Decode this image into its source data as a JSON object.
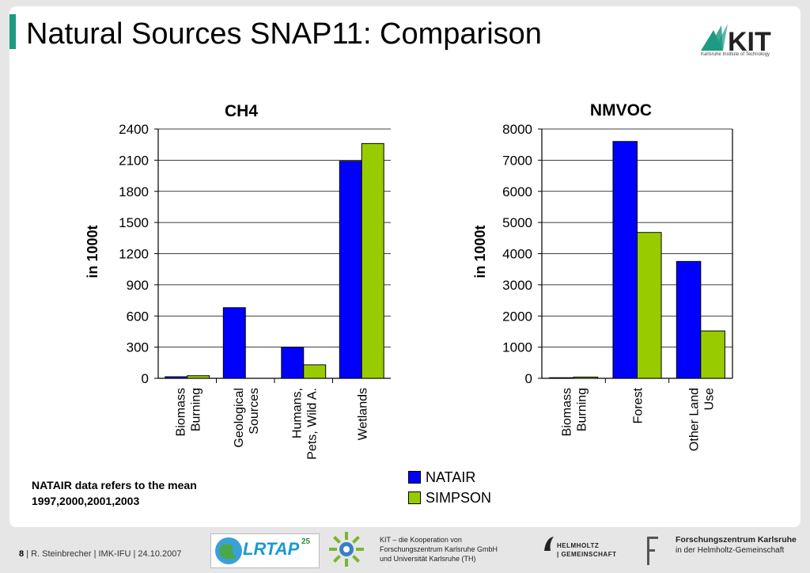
{
  "slide": {
    "title": "Natural Sources SNAP11: Comparison",
    "logo": {
      "name": "KIT",
      "subtitle": "Karlsruhe Institute of Technology"
    },
    "note": [
      "NATAIR data refers to the mean",
      "1997,2000,2001,2003"
    ],
    "legend": [
      {
        "label": "NATAIR",
        "color": "#0000ff"
      },
      {
        "label": "SIMPSON",
        "color": "#99cc00"
      }
    ]
  },
  "chart_data": [
    {
      "type": "bar",
      "title": "CH4",
      "ylabel": "in 1000t",
      "categories": [
        [
          "Biomass",
          "Burning"
        ],
        [
          "Geological",
          "Sources"
        ],
        [
          "Humans,",
          "Pets, Wild A."
        ],
        [
          "Wetlands"
        ]
      ],
      "series": [
        {
          "name": "NATAIR",
          "color": "#0000ff",
          "values": [
            15,
            680,
            300,
            2090
          ]
        },
        {
          "name": "SIMPSON",
          "color": "#99cc00",
          "values": [
            25,
            0,
            130,
            2260
          ]
        }
      ],
      "ylim": [
        0,
        2400
      ],
      "yticks": [
        0,
        300,
        600,
        900,
        1200,
        1500,
        1800,
        2100,
        2400
      ],
      "grid": true,
      "legend": "bottom"
    },
    {
      "type": "bar",
      "title": "NMVOC",
      "ylabel": "in 1000t",
      "categories": [
        [
          "Biomass",
          "Burning"
        ],
        [
          "Forest"
        ],
        [
          "Other Land",
          "Use"
        ]
      ],
      "series": [
        {
          "name": "NATAIR",
          "color": "#0000ff",
          "values": [
            20,
            7600,
            3750
          ]
        },
        {
          "name": "SIMPSON",
          "color": "#99cc00",
          "values": [
            40,
            4680,
            1520
          ]
        }
      ],
      "ylim": [
        0,
        8000
      ],
      "yticks": [
        0,
        1000,
        2000,
        3000,
        4000,
        5000,
        6000,
        7000,
        8000
      ],
      "grid": true,
      "legend": "bottom"
    }
  ],
  "footer": {
    "page": "8",
    "info": "| R. Steinbrecher | IMK-IFU | 24.10.2007",
    "lrtap": "LRTAP",
    "lrtap_sup": "25",
    "coop": [
      "KIT – die Kooperation von",
      "Forschungszentrum Karlsruhe GmbH",
      "und Universität Karlsruhe (TH)"
    ],
    "helmholtz": [
      "HELMHOLTZ",
      "| GEMEINSCHAFT"
    ],
    "fzk": [
      "Forschungszentrum Karlsruhe",
      "in der Helmholtz-Gemeinschaft"
    ]
  }
}
